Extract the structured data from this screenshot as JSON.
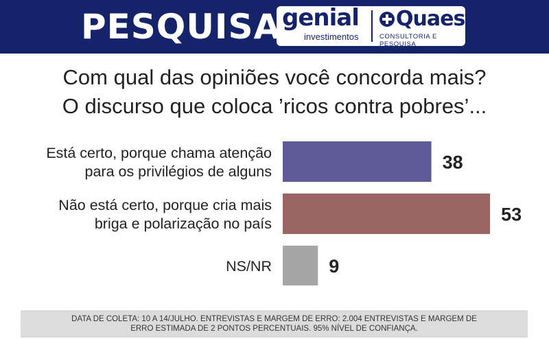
{
  "header": {
    "title": "PESQUISA",
    "logo_genial": "genial",
    "logo_genial_sub": "investimentos",
    "logo_quaest": "Quaest",
    "logo_quaest_sub": "CONSULTORIA E PESQUISA",
    "color": "#15236a"
  },
  "question": {
    "line1": "Com qual das opiniões você concorda mais?",
    "line2": "O discurso que coloca ’ricos contra pobres’..."
  },
  "chart_data": {
    "type": "bar",
    "orientation": "horizontal",
    "categories": [
      [
        "Está certo, porque chama atenção",
        "para os privilégios de alguns"
      ],
      [
        "Não está certo, porque cria mais",
        "briga e polarização no país"
      ],
      [
        "NS/NR"
      ]
    ],
    "values": [
      38,
      53,
      9
    ],
    "value_labels": [
      "38",
      "53",
      "9"
    ],
    "colors": [
      "#5f5a98",
      "#9a6563",
      "#a6a6a6"
    ],
    "xlim": [
      0,
      100
    ],
    "grid": false,
    "legend": "none"
  },
  "footer": {
    "line1": "DATA DE COLETA: 10 A 14/JULHO. ENTREVISTAS E MARGEM DE ERRO: 2.004 ENTREVISTAS E MARGEM DE",
    "line2": "ERRO ESTIMADA DE 2 PONTOS PERCENTUAIS. 95% NÍVEL DE CONFIANÇA."
  }
}
